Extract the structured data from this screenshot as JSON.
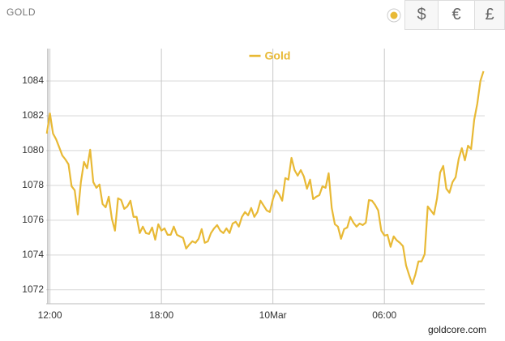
{
  "header": {
    "title": "GOLD",
    "currencies": [
      "$",
      "€",
      "£"
    ]
  },
  "chart_data": {
    "type": "line",
    "credit": "goldcore.com",
    "x": [
      -10,
      0,
      10,
      20,
      30,
      40,
      50,
      60,
      70,
      80,
      90,
      100,
      110,
      120,
      130,
      140,
      150,
      160,
      170,
      180,
      190,
      200,
      210,
      220,
      230,
      240,
      250,
      260,
      270,
      280,
      290,
      300,
      310,
      320,
      330,
      340,
      350,
      360,
      370,
      380,
      390,
      400,
      410,
      420,
      430,
      440,
      450,
      460,
      470,
      480,
      490,
      500,
      510,
      520,
      530,
      540,
      550,
      560,
      570,
      580,
      590,
      600,
      610,
      620,
      630,
      640,
      650,
      660,
      670,
      680,
      690,
      700,
      710,
      720,
      730,
      740,
      750,
      760,
      770,
      780,
      790,
      800,
      810,
      820,
      830,
      840,
      850,
      860,
      870,
      880,
      890,
      900,
      910,
      920,
      930,
      940,
      950,
      960,
      970,
      980,
      990,
      1000,
      1010,
      1020,
      1030,
      1040,
      1050,
      1060,
      1070,
      1080,
      1090,
      1100,
      1110,
      1120,
      1130,
      1140,
      1150,
      1160,
      1170,
      1180,
      1190,
      1200,
      1210,
      1220,
      1230,
      1240,
      1250,
      1260,
      1270,
      1280,
      1290,
      1300,
      1310,
      1320,
      1330,
      1340,
      1350,
      1360,
      1370,
      1380,
      1390,
      1400
    ],
    "series": [
      {
        "name": "Gold",
        "color": "#e8b935",
        "values": [
          1080.98,
          1082.14,
          1080.98,
          1080.65,
          1080.19,
          1079.72,
          1079.49,
          1079.21,
          1077.95,
          1077.72,
          1076.33,
          1078.19,
          1079.35,
          1078.98,
          1080.05,
          1078.19,
          1077.86,
          1078.05,
          1076.93,
          1076.74,
          1077.35,
          1076.09,
          1075.4,
          1077.26,
          1077.16,
          1076.65,
          1076.79,
          1077.12,
          1076.19,
          1076.19,
          1075.26,
          1075.63,
          1075.26,
          1075.21,
          1075.58,
          1074.88,
          1075.77,
          1075.4,
          1075.53,
          1075.16,
          1075.16,
          1075.63,
          1075.16,
          1075.07,
          1074.98,
          1074.37,
          1074.6,
          1074.79,
          1074.7,
          1074.93,
          1075.49,
          1074.7,
          1074.79,
          1075.26,
          1075.53,
          1075.72,
          1075.4,
          1075.26,
          1075.53,
          1075.26,
          1075.81,
          1075.91,
          1075.63,
          1076.19,
          1076.47,
          1076.28,
          1076.7,
          1076.19,
          1076.47,
          1077.12,
          1076.84,
          1076.56,
          1076.47,
          1077.21,
          1077.72,
          1077.49,
          1077.12,
          1078.42,
          1078.33,
          1079.58,
          1078.88,
          1078.56,
          1078.88,
          1078.51,
          1077.81,
          1078.33,
          1077.21,
          1077.35,
          1077.44,
          1077.95,
          1077.86,
          1078.7,
          1076.7,
          1075.77,
          1075.63,
          1074.93,
          1075.49,
          1075.58,
          1076.19,
          1075.86,
          1075.63,
          1075.81,
          1075.72,
          1075.86,
          1077.16,
          1077.12,
          1076.88,
          1076.56,
          1075.4,
          1075.12,
          1075.16,
          1074.47,
          1075.07,
          1074.84,
          1074.7,
          1074.51,
          1073.4,
          1072.84,
          1072.33,
          1072.88,
          1073.63,
          1073.63,
          1074.05,
          1076.79,
          1076.56,
          1076.33,
          1077.26,
          1078.74,
          1079.12,
          1077.81,
          1077.58,
          1078.19,
          1078.47,
          1079.53,
          1080.14,
          1079.44,
          1080.28,
          1080.09,
          1081.77,
          1082.7,
          1084.0,
          1084.56
        ]
      }
    ],
    "xlim": [
      -12,
      1404
    ],
    "xticks": [
      {
        "value": 0,
        "label": "12:00"
      },
      {
        "value": 360,
        "label": "18:00"
      },
      {
        "value": 720,
        "label": "10Mar"
      },
      {
        "value": 1080,
        "label": "06:00"
      }
    ],
    "ylim": [
      1071.2,
      1085.86
    ],
    "yticks": [
      1072,
      1074,
      1076,
      1078,
      1080,
      1082,
      1084
    ],
    "grid": true,
    "legend": "top"
  }
}
